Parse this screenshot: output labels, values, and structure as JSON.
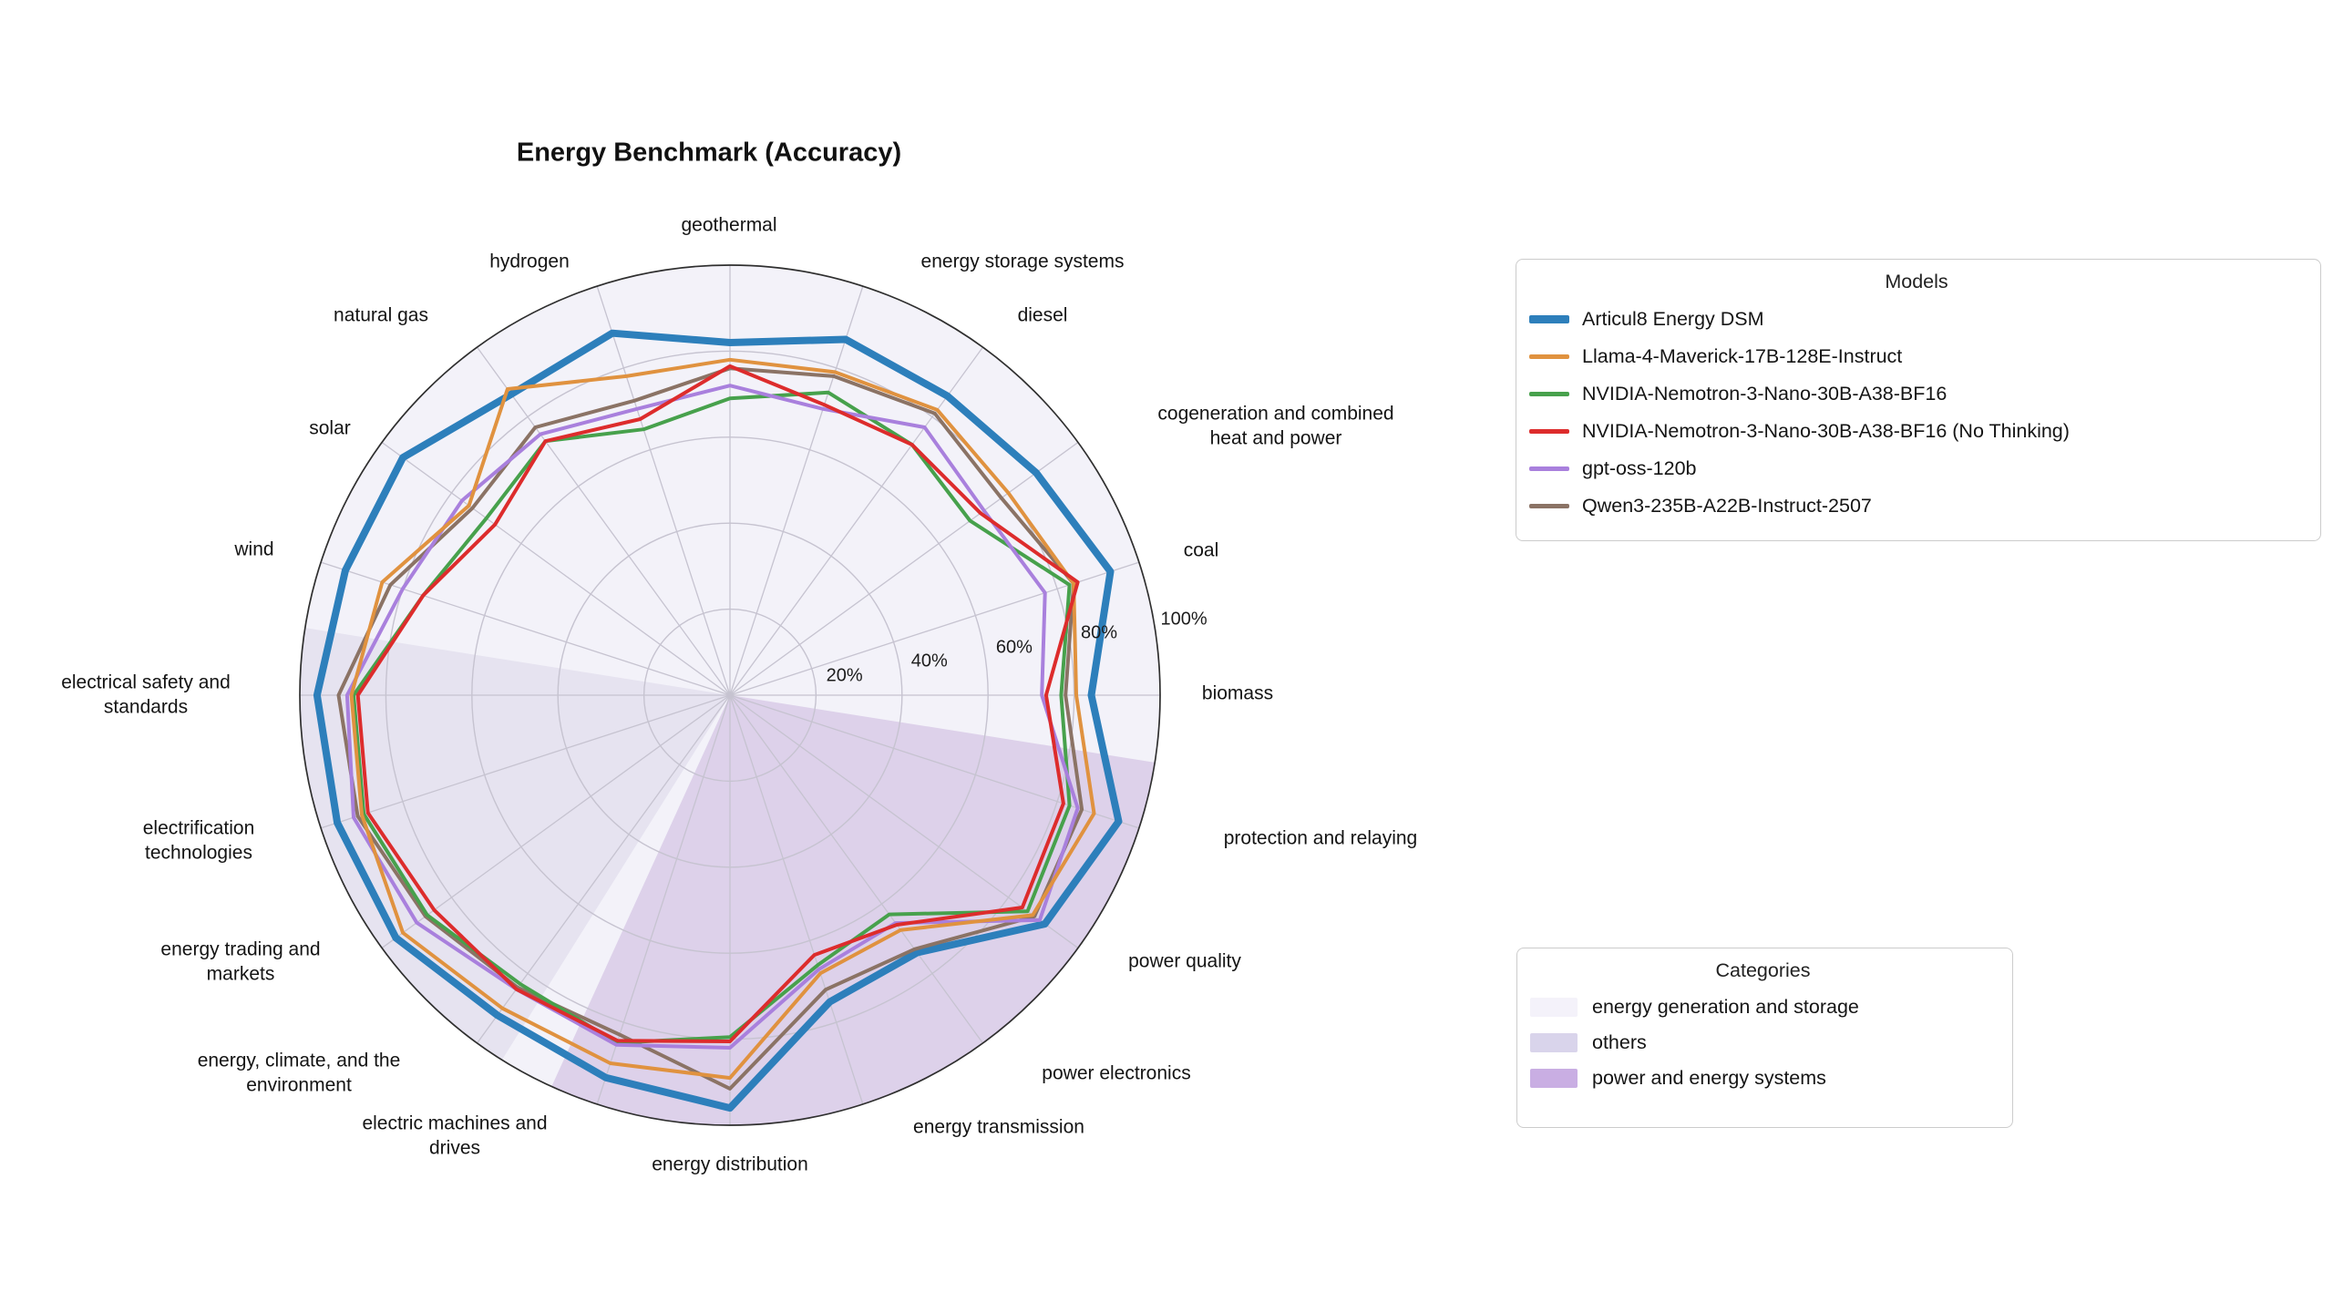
{
  "title": "Energy Benchmark (Accuracy)",
  "legend_models": {
    "title": "Models"
  },
  "legend_categories": {
    "title": "Categories"
  },
  "chart_data": {
    "type": "radar",
    "title": "Energy Benchmark (Accuracy)",
    "units": "accuracy percent",
    "radial_range": [
      0,
      100
    ],
    "radial_ticks": [
      "20%",
      "40%",
      "60%",
      "80%",
      "100%"
    ],
    "grid": true,
    "categories": [
      "geothermal",
      "energy storage systems",
      "diesel",
      "cogeneration and combined heat and power",
      "coal",
      "biomass",
      "protection and relaying",
      "power quality",
      "power electronics",
      "energy transmission",
      "energy distribution",
      "electric machines and drives",
      "energy, climate, and the environment",
      "energy trading and markets",
      "electrification technologies",
      "electrical safety and standards",
      "wind",
      "solar",
      "natural gas",
      "hydrogen"
    ],
    "series": [
      {
        "name": "Articul8 Energy DSM",
        "color": "#2d7fbb",
        "line_width": 8,
        "values": [
          82,
          87,
          86,
          88,
          93,
          84,
          95,
          90.5,
          74,
          75,
          96,
          93.5,
          92,
          96,
          96,
          96,
          94,
          94,
          86.5,
          88.5
        ]
      },
      {
        "name": "Llama-4-Maverick-17B-128E-Instruct",
        "color": "#e0923f",
        "line_width": 4,
        "values": [
          78,
          79,
          82,
          80,
          84,
          80.5,
          89,
          87,
          67.5,
          68,
          89,
          90,
          90,
          94,
          90,
          88,
          85,
          75,
          88,
          78
        ]
      },
      {
        "name": "NVIDIA-Nemotron-3-Nano-30B-A38-BF16",
        "color": "#47a14c",
        "line_width": 4,
        "values": [
          69,
          74,
          72,
          69,
          83,
          77,
          83,
          85.5,
          63,
          66,
          79.5,
          85,
          83,
          87,
          89.5,
          87.5,
          75,
          70,
          73,
          65
        ]
      },
      {
        "name": "NVIDIA-Nemotron-3-Nano-30B-A38-BF16 (No Thinking)",
        "color": "#dd2c2c",
        "line_width": 4,
        "values": [
          76.5,
          71,
          72,
          72,
          85,
          73.5,
          81.5,
          84,
          66,
          63.5,
          80.5,
          84.5,
          84.5,
          85,
          88.5,
          86.5,
          75,
          67.5,
          73,
          67.5
        ]
      },
      {
        "name": "gpt-oss-120b",
        "color": "#a980dd",
        "line_width": 4,
        "values": [
          72,
          70,
          77,
          73,
          77,
          72.5,
          85,
          89,
          65.5,
          67,
          82,
          85.5,
          84.5,
          90,
          92,
          89,
          80,
          77,
          75,
          70
        ]
      },
      {
        "name": "Qwen3-235B-A22B-Instruct-2507",
        "color": "#8b7365",
        "line_width": 4,
        "values": [
          76,
          78,
          81,
          78,
          84,
          78,
          86,
          87.5,
          73,
          72,
          91.5,
          83,
          84,
          87.5,
          91,
          91,
          83,
          74,
          77,
          72
        ]
      }
    ],
    "category_groups": [
      {
        "label": "energy generation and storage",
        "swatch_color": "#f4f2fa",
        "wedge_color": "#f3f2f9",
        "start_angle_deg": -9,
        "end_angle_deg": 171
      },
      {
        "label": "others",
        "swatch_color": "#d9d4eb",
        "wedge_color": "#e6e3f0",
        "start_angle_deg": 171,
        "end_angle_deg": 238
      },
      {
        "label": "power and energy systems",
        "swatch_color": "#c9aee3",
        "wedge_color": "#ddd1ea",
        "start_angle_deg": -114.5,
        "end_angle_deg": -9
      }
    ],
    "legend_position": "right",
    "axis_count": 20,
    "start_axis_angle_deg": 90,
    "axis_step_deg": -18
  }
}
